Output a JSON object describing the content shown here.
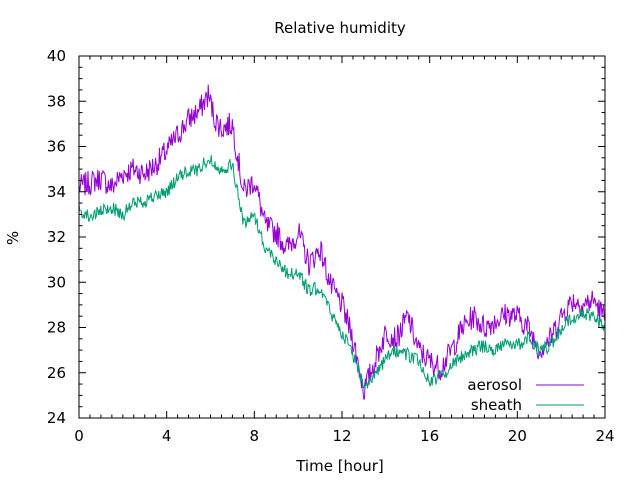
{
  "chart_data": {
    "type": "line",
    "title": "Relative humidity",
    "xlabel": "Time [hour]",
    "ylabel": "%",
    "xlim": [
      0,
      24
    ],
    "ylim": [
      24,
      40
    ],
    "xticks": [
      0,
      4,
      8,
      12,
      16,
      20,
      24
    ],
    "yticks": [
      24,
      26,
      28,
      30,
      32,
      34,
      36,
      38,
      40
    ],
    "grid": false,
    "legend_position": "bottom-right",
    "series": [
      {
        "name": "aerosol",
        "color": "#9400d3",
        "x": [
          0,
          0.5,
          1,
          1.5,
          2,
          2.5,
          3,
          3.5,
          4,
          4.5,
          5,
          5.5,
          5.9,
          6.2,
          6.5,
          7,
          7.5,
          8,
          8.5,
          9,
          9.5,
          10,
          10.5,
          11,
          11.5,
          12,
          12.5,
          13,
          13.5,
          14,
          14.5,
          15,
          15.5,
          16,
          16.5,
          17,
          17.5,
          18,
          18.5,
          19,
          19.5,
          20,
          20.5,
          21,
          21.5,
          22,
          22.5,
          23,
          23.5,
          24
        ],
        "y": [
          34.2,
          34.4,
          34.6,
          34.2,
          34.8,
          35.0,
          34.8,
          35.2,
          35.8,
          36.5,
          37.2,
          37.6,
          38.3,
          37.2,
          36.8,
          37.0,
          34.0,
          34.5,
          32.5,
          32.2,
          31.5,
          32.2,
          30.8,
          31.5,
          29.8,
          29.0,
          27.5,
          25.2,
          26.5,
          27.8,
          27.5,
          28.5,
          27.0,
          26.5,
          26.2,
          27.0,
          28.0,
          28.5,
          28.0,
          28.3,
          28.6,
          28.5,
          28.0,
          27.0,
          27.5,
          28.5,
          29.2,
          29.0,
          29.2,
          28.4
        ]
      },
      {
        "name": "sheath",
        "color": "#009e73",
        "x": [
          0,
          0.5,
          1,
          1.5,
          2,
          2.5,
          3,
          3.5,
          4,
          4.5,
          5,
          5.5,
          5.9,
          6.2,
          6.5,
          7,
          7.5,
          8,
          8.5,
          9,
          9.5,
          10,
          10.5,
          11,
          11.5,
          12,
          12.5,
          13,
          13.5,
          14,
          14.5,
          15,
          15.5,
          16,
          16.5,
          17,
          17.5,
          18,
          18.5,
          19,
          19.5,
          20,
          20.5,
          21,
          21.5,
          22,
          22.5,
          23,
          23.5,
          24
        ],
        "y": [
          33.2,
          32.9,
          33.1,
          33.3,
          33.0,
          33.5,
          33.6,
          33.8,
          34.0,
          34.6,
          34.9,
          35.0,
          35.5,
          35.2,
          35.0,
          35.2,
          32.6,
          33.0,
          31.5,
          31.0,
          30.4,
          30.4,
          29.6,
          29.8,
          28.6,
          27.8,
          26.8,
          25.5,
          25.8,
          26.6,
          27.0,
          26.8,
          26.5,
          25.6,
          25.8,
          26.3,
          26.8,
          27.0,
          27.2,
          27.0,
          27.4,
          27.2,
          27.6,
          27.0,
          27.2,
          28.0,
          28.4,
          28.6,
          28.5,
          28.0
        ]
      }
    ]
  }
}
